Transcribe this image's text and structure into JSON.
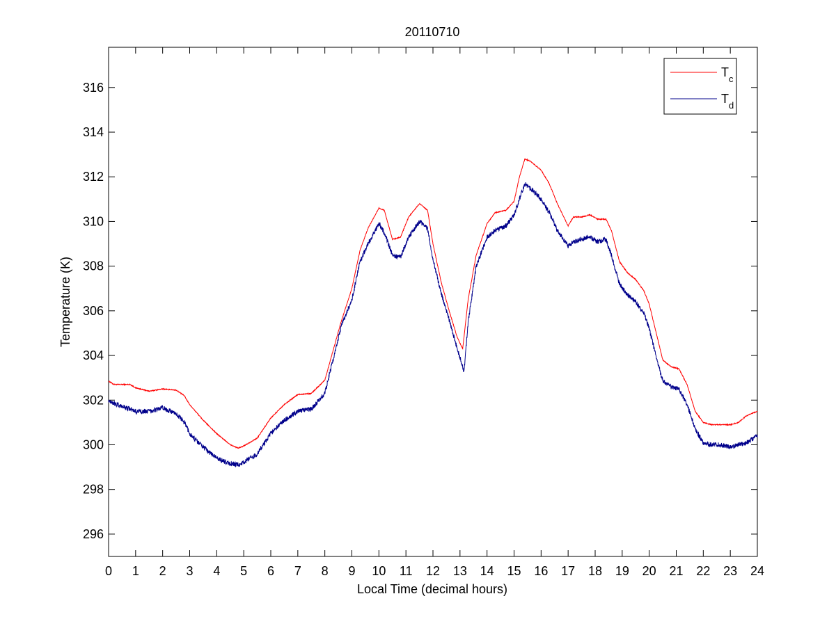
{
  "chart_data": {
    "type": "line",
    "title": "20110710",
    "xlabel": "Local Time (decimal hours)",
    "ylabel": "Temperature (K)",
    "xlim": [
      0,
      24
    ],
    "ylim": [
      295,
      317.8
    ],
    "xticks": [
      0,
      1,
      2,
      3,
      4,
      5,
      6,
      7,
      8,
      9,
      10,
      11,
      12,
      13,
      14,
      15,
      16,
      17,
      18,
      19,
      20,
      21,
      22,
      23,
      24
    ],
    "yticks": [
      296,
      298,
      300,
      302,
      304,
      306,
      308,
      310,
      312,
      314,
      316
    ],
    "grid": false,
    "legend_position": "top-right",
    "series": [
      {
        "name": "T",
        "subscript": "c",
        "color": "#ff0000",
        "points": [
          [
            0,
            302.85
          ],
          [
            0.2,
            302.7
          ],
          [
            0.8,
            302.7
          ],
          [
            1.0,
            302.55
          ],
          [
            1.5,
            302.4
          ],
          [
            2.0,
            302.5
          ],
          [
            2.5,
            302.45
          ],
          [
            2.8,
            302.2
          ],
          [
            3.0,
            301.8
          ],
          [
            3.5,
            301.1
          ],
          [
            4.0,
            300.5
          ],
          [
            4.5,
            300.0
          ],
          [
            4.8,
            299.85
          ],
          [
            5.0,
            299.95
          ],
          [
            5.5,
            300.3
          ],
          [
            6.0,
            301.2
          ],
          [
            6.5,
            301.8
          ],
          [
            7.0,
            302.25
          ],
          [
            7.5,
            302.3
          ],
          [
            8.0,
            302.9
          ],
          [
            8.3,
            304.2
          ],
          [
            8.6,
            305.5
          ],
          [
            9.0,
            307.0
          ],
          [
            9.3,
            308.7
          ],
          [
            9.6,
            309.7
          ],
          [
            10.0,
            310.6
          ],
          [
            10.2,
            310.5
          ],
          [
            10.5,
            309.2
          ],
          [
            10.8,
            309.3
          ],
          [
            11.1,
            310.2
          ],
          [
            11.5,
            310.8
          ],
          [
            11.8,
            310.5
          ],
          [
            12.0,
            309.0
          ],
          [
            12.3,
            307.3
          ],
          [
            12.6,
            306.0
          ],
          [
            12.9,
            304.8
          ],
          [
            13.1,
            304.3
          ],
          [
            13.3,
            306.5
          ],
          [
            13.6,
            308.5
          ],
          [
            14.0,
            309.9
          ],
          [
            14.3,
            310.4
          ],
          [
            14.7,
            310.5
          ],
          [
            15.0,
            310.9
          ],
          [
            15.2,
            312.0
          ],
          [
            15.4,
            312.8
          ],
          [
            15.6,
            312.7
          ],
          [
            16.0,
            312.3
          ],
          [
            16.3,
            311.7
          ],
          [
            16.6,
            310.8
          ],
          [
            17.0,
            309.8
          ],
          [
            17.2,
            310.2
          ],
          [
            17.5,
            310.2
          ],
          [
            17.8,
            310.3
          ],
          [
            18.1,
            310.1
          ],
          [
            18.4,
            310.1
          ],
          [
            18.6,
            309.6
          ],
          [
            18.9,
            308.2
          ],
          [
            19.2,
            307.7
          ],
          [
            19.5,
            307.4
          ],
          [
            19.8,
            306.9
          ],
          [
            20.0,
            306.3
          ],
          [
            20.3,
            304.8
          ],
          [
            20.5,
            303.8
          ],
          [
            20.8,
            303.5
          ],
          [
            21.1,
            303.4
          ],
          [
            21.4,
            302.7
          ],
          [
            21.7,
            301.5
          ],
          [
            22.0,
            301.0
          ],
          [
            22.3,
            300.9
          ],
          [
            22.6,
            300.9
          ],
          [
            23.0,
            300.9
          ],
          [
            23.3,
            301.0
          ],
          [
            23.6,
            301.3
          ],
          [
            24.0,
            301.5
          ]
        ]
      },
      {
        "name": "T",
        "subscript": "d",
        "color": "#00008b",
        "points": [
          [
            0,
            302.0
          ],
          [
            0.3,
            301.8
          ],
          [
            0.8,
            301.6
          ],
          [
            1.0,
            301.5
          ],
          [
            1.5,
            301.5
          ],
          [
            2.0,
            301.65
          ],
          [
            2.5,
            301.4
          ],
          [
            2.8,
            301.0
          ],
          [
            3.0,
            300.5
          ],
          [
            3.5,
            299.9
          ],
          [
            4.0,
            299.4
          ],
          [
            4.5,
            299.15
          ],
          [
            4.8,
            299.1
          ],
          [
            5.0,
            299.2
          ],
          [
            5.5,
            299.6
          ],
          [
            6.0,
            300.5
          ],
          [
            6.5,
            301.1
          ],
          [
            7.0,
            301.5
          ],
          [
            7.5,
            301.6
          ],
          [
            8.0,
            302.3
          ],
          [
            8.3,
            303.8
          ],
          [
            8.6,
            305.3
          ],
          [
            9.0,
            306.5
          ],
          [
            9.3,
            308.2
          ],
          [
            9.6,
            309.0
          ],
          [
            10.0,
            309.9
          ],
          [
            10.2,
            309.5
          ],
          [
            10.5,
            308.5
          ],
          [
            10.8,
            308.4
          ],
          [
            11.1,
            309.3
          ],
          [
            11.5,
            310.0
          ],
          [
            11.8,
            309.7
          ],
          [
            12.0,
            308.3
          ],
          [
            12.3,
            306.8
          ],
          [
            12.6,
            305.6
          ],
          [
            12.9,
            304.3
          ],
          [
            13.15,
            303.3
          ],
          [
            13.3,
            305.5
          ],
          [
            13.6,
            308.0
          ],
          [
            14.0,
            309.3
          ],
          [
            14.3,
            309.6
          ],
          [
            14.7,
            309.8
          ],
          [
            15.0,
            310.3
          ],
          [
            15.2,
            311.0
          ],
          [
            15.4,
            311.7
          ],
          [
            15.6,
            311.5
          ],
          [
            16.0,
            311.0
          ],
          [
            16.3,
            310.4
          ],
          [
            16.6,
            309.6
          ],
          [
            17.0,
            308.9
          ],
          [
            17.2,
            309.1
          ],
          [
            17.5,
            309.2
          ],
          [
            17.8,
            309.3
          ],
          [
            18.1,
            309.1
          ],
          [
            18.4,
            309.2
          ],
          [
            18.6,
            308.5
          ],
          [
            18.9,
            307.2
          ],
          [
            19.2,
            306.7
          ],
          [
            19.5,
            306.4
          ],
          [
            19.8,
            305.9
          ],
          [
            20.0,
            305.2
          ],
          [
            20.3,
            303.7
          ],
          [
            20.5,
            302.9
          ],
          [
            20.8,
            302.6
          ],
          [
            21.1,
            302.5
          ],
          [
            21.4,
            301.8
          ],
          [
            21.7,
            300.7
          ],
          [
            22.0,
            300.1
          ],
          [
            22.3,
            300.0
          ],
          [
            22.6,
            300.0
          ],
          [
            23.0,
            299.9
          ],
          [
            23.3,
            300.0
          ],
          [
            23.6,
            300.1
          ],
          [
            24.0,
            300.4
          ]
        ]
      }
    ]
  }
}
